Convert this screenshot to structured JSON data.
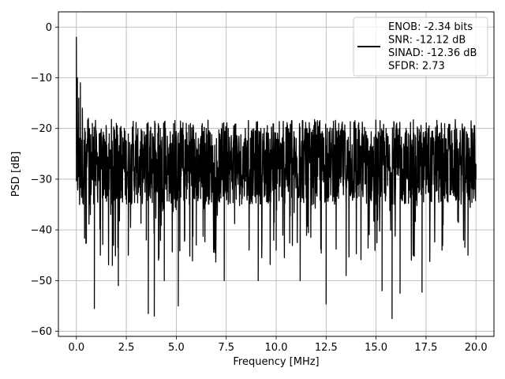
{
  "chart_data": {
    "type": "line",
    "xlabel": "Frequency [MHz]",
    "ylabel": "PSD [dB]",
    "xlim": [
      -0.9,
      20.9
    ],
    "ylim": [
      -61,
      3
    ],
    "xticks": [
      0.0,
      2.5,
      5.0,
      7.5,
      10.0,
      12.5,
      15.0,
      17.5,
      20.0
    ],
    "xtick_labels": [
      "0.0",
      "2.5",
      "5.0",
      "7.5",
      "10.0",
      "12.5",
      "15.0",
      "17.5",
      "20.0"
    ],
    "yticks": [
      0,
      -10,
      -20,
      -30,
      -40,
      -50,
      -60
    ],
    "ytick_labels": [
      "0",
      "−10",
      "−20",
      "−30",
      "−40",
      "−50",
      "−60"
    ],
    "grid": true,
    "legend_position": "top-right",
    "legend_lines": [
      "ENOB: -2.34 bits",
      "SNR: -12.12 dB",
      "SINAD: -12.36 dB",
      "SFDR: 2.73"
    ],
    "line_color": "#000000",
    "series": [
      {
        "noise_floor_db": -28,
        "noise_band_db": [
          -35,
          -20
        ],
        "min_db": -57.6,
        "points": [
          [
            0.0,
            -2.0
          ],
          [
            0.02,
            -24
          ],
          [
            0.05,
            -10
          ],
          [
            0.08,
            -30
          ],
          [
            0.12,
            -14
          ],
          [
            0.16,
            -35
          ],
          [
            0.2,
            -11
          ],
          [
            0.25,
            -33
          ],
          [
            0.3,
            -16
          ],
          [
            0.35,
            -31
          ],
          [
            0.42,
            -20
          ],
          [
            0.5,
            -42.5
          ],
          [
            0.6,
            -18
          ],
          [
            0.7,
            -37
          ],
          [
            0.8,
            -19
          ],
          [
            0.9,
            -55.5
          ],
          [
            1.0,
            -21
          ],
          [
            1.2,
            -45
          ],
          [
            1.5,
            -20
          ],
          [
            1.8,
            -47
          ],
          [
            2.0,
            -19
          ],
          [
            2.1,
            -51
          ],
          [
            2.4,
            -20
          ],
          [
            2.6,
            -45
          ],
          [
            3.0,
            -21
          ],
          [
            3.5,
            -42
          ],
          [
            3.6,
            -56.5
          ],
          [
            3.8,
            -21
          ],
          [
            3.9,
            -57
          ],
          [
            4.2,
            -20
          ],
          [
            4.4,
            -50
          ],
          [
            4.7,
            -21
          ],
          [
            5.0,
            -36
          ],
          [
            5.1,
            -55
          ],
          [
            5.5,
            -19
          ],
          [
            6.0,
            -43
          ],
          [
            6.5,
            -20
          ],
          [
            7.4,
            -50
          ],
          [
            7.6,
            -20
          ],
          [
            9.1,
            -50
          ],
          [
            9.4,
            -20
          ],
          [
            10.0,
            -44
          ],
          [
            10.5,
            -20
          ],
          [
            11.2,
            -50
          ],
          [
            11.5,
            -20
          ],
          [
            12.5,
            -54.6
          ],
          [
            12.8,
            -20
          ],
          [
            13.5,
            -49
          ],
          [
            14.0,
            -20
          ],
          [
            15.3,
            -52
          ],
          [
            15.5,
            -20
          ],
          [
            15.8,
            -57.5
          ],
          [
            16.0,
            -20
          ],
          [
            16.2,
            -52.5
          ],
          [
            16.5,
            -20
          ],
          [
            17.3,
            -52.3
          ],
          [
            17.6,
            -20
          ],
          [
            18.3,
            -44
          ],
          [
            18.6,
            -20
          ],
          [
            19.6,
            -45
          ],
          [
            19.9,
            -21
          ],
          [
            20.0,
            -30
          ]
        ]
      }
    ]
  }
}
